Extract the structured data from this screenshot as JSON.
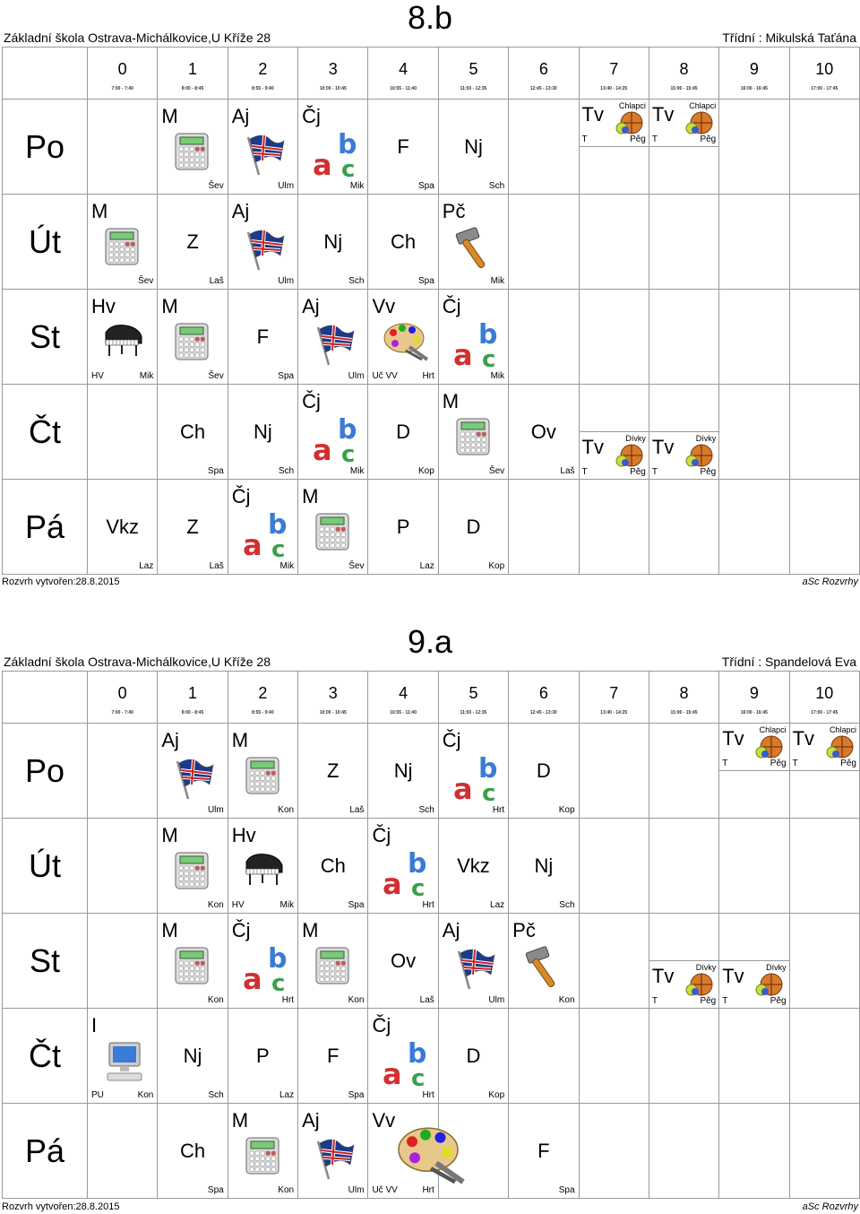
{
  "periods": [
    {
      "n": "0",
      "t": "7:00 - 7:40"
    },
    {
      "n": "1",
      "t": "8:00 - 8:45"
    },
    {
      "n": "2",
      "t": "8:55 - 9:40"
    },
    {
      "n": "3",
      "t": "10:00 - 10:45"
    },
    {
      "n": "4",
      "t": "10:55 - 11:40"
    },
    {
      "n": "5",
      "t": "11:50 - 12:35"
    },
    {
      "n": "6",
      "t": "12:45 - 13:30"
    },
    {
      "n": "7",
      "t": "13:40 - 14:25"
    },
    {
      "n": "8",
      "t": "15:00 - 15:45"
    },
    {
      "n": "9",
      "t": "16:00 - 16:45"
    },
    {
      "n": "10",
      "t": "17:00 - 17:45"
    }
  ],
  "school": "Základní škola Ostrava-Michálkovice,U Kříže 28",
  "created": "Rozvrh vytvořen:28.8.2015",
  "brand": "aSc Rozvrhy",
  "days": [
    "Po",
    "Út",
    "St",
    "Čt",
    "Pá"
  ],
  "timetables": [
    {
      "class": "8.b",
      "teacher": "Třídní : Mikulská Taťána",
      "rows": [
        [
          {},
          {
            "s": "M",
            "i": "calc",
            "t": "Šev"
          },
          {
            "s": "Aj",
            "i": "flag",
            "t": "Ulm"
          },
          {
            "s": "Čj",
            "i": "abc",
            "t": "Mik"
          },
          {
            "s": "F",
            "t": "Spa"
          },
          {
            "s": "Nj",
            "t": "Sch"
          },
          {},
          {
            "s": "Tv",
            "i": "ball",
            "g": "Chlapci",
            "gt": "T",
            "gp": "Pěg",
            "half": "top"
          },
          {
            "s": "Tv",
            "i": "ball",
            "g": "Chlapci",
            "gt": "T",
            "gp": "Pěg",
            "half": "top"
          },
          {},
          {}
        ],
        [
          {
            "s": "M",
            "i": "calc",
            "t": "Šev"
          },
          {
            "s": "Z",
            "t": "Laš"
          },
          {
            "s": "Aj",
            "i": "flag",
            "t": "Ulm"
          },
          {
            "s": "Nj",
            "t": "Sch"
          },
          {
            "s": "Ch",
            "t": "Spa"
          },
          {
            "s": "Pč",
            "i": "hammer",
            "t": "Mik"
          },
          {},
          {},
          {},
          {},
          {}
        ],
        [
          {
            "s": "Hv",
            "i": "piano",
            "t": "Mik",
            "tl": "HV"
          },
          {
            "s": "M",
            "i": "calc",
            "t": "Šev"
          },
          {
            "s": "F",
            "t": "Spa"
          },
          {
            "s": "Aj",
            "i": "flag",
            "t": "Ulm"
          },
          {
            "s": "Vv",
            "i": "palette",
            "t": "Hrt",
            "tl": "Uč VV"
          },
          {
            "s": "Čj",
            "i": "abc",
            "t": "Mik"
          },
          {},
          {},
          {},
          {},
          {}
        ],
        [
          {},
          {
            "s": "Ch",
            "t": "Spa"
          },
          {
            "s": "Nj",
            "t": "Sch"
          },
          {
            "s": "Čj",
            "i": "abc",
            "t": "Mik"
          },
          {
            "s": "D",
            "t": "Kop"
          },
          {
            "s": "M",
            "i": "calc",
            "t": "Šev"
          },
          {
            "s": "Ov",
            "t": "Laš"
          },
          {
            "s": "Tv",
            "i": "ball",
            "g": "Dívky",
            "gt": "T",
            "gp": "Pěg",
            "half": "bottom"
          },
          {
            "s": "Tv",
            "i": "ball",
            "g": "Dívky",
            "gt": "T",
            "gp": "Pěg",
            "half": "bottom"
          },
          {},
          {}
        ],
        [
          {
            "s": "Vkz",
            "t": "Laz"
          },
          {
            "s": "Z",
            "t": "Laš"
          },
          {
            "s": "Čj",
            "i": "abc",
            "t": "Mik"
          },
          {
            "s": "M",
            "i": "calc",
            "t": "Šev"
          },
          {
            "s": "P",
            "t": "Laz"
          },
          {
            "s": "D",
            "t": "Kop"
          },
          {},
          {},
          {},
          {},
          {}
        ]
      ]
    },
    {
      "class": "9.a",
      "teacher": "Třídní : Spandelová Eva",
      "rows": [
        [
          {},
          {
            "s": "Aj",
            "i": "flag",
            "t": "Ulm"
          },
          {
            "s": "M",
            "i": "calc",
            "t": "Kon"
          },
          {
            "s": "Z",
            "t": "Laš"
          },
          {
            "s": "Nj",
            "t": "Sch"
          },
          {
            "s": "Čj",
            "i": "abc",
            "t": "Hrt"
          },
          {
            "s": "D",
            "t": "Kop"
          },
          {},
          {},
          {
            "s": "Tv",
            "i": "ball",
            "g": "Chlapci",
            "gt": "T",
            "gp": "Pěg",
            "half": "top"
          },
          {
            "s": "Tv",
            "i": "ball",
            "g": "Chlapci",
            "gt": "T",
            "gp": "Pěg",
            "half": "top"
          }
        ],
        [
          {},
          {
            "s": "M",
            "i": "calc",
            "t": "Kon"
          },
          {
            "s": "Hv",
            "i": "piano",
            "t": "Mik",
            "tl": "HV"
          },
          {
            "s": "Ch",
            "t": "Spa"
          },
          {
            "s": "Čj",
            "i": "abc",
            "t": "Hrt"
          },
          {
            "s": "Vkz",
            "t": "Laz"
          },
          {
            "s": "Nj",
            "t": "Sch"
          },
          {},
          {},
          {},
          {}
        ],
        [
          {},
          {
            "s": "M",
            "i": "calc",
            "t": "Kon"
          },
          {
            "s": "Čj",
            "i": "abc",
            "t": "Hrt"
          },
          {
            "s": "M",
            "i": "calc",
            "t": "Kon"
          },
          {
            "s": "Ov",
            "t": "Laš"
          },
          {
            "s": "Aj",
            "i": "flag",
            "t": "Ulm"
          },
          {
            "s": "Pč",
            "i": "hammer",
            "t": "Kon"
          },
          {},
          {
            "s": "Tv",
            "i": "ball",
            "g": "Dívky",
            "gt": "T",
            "gp": "Pěg",
            "half": "bottom"
          },
          {
            "s": "Tv",
            "i": "ball",
            "g": "Dívky",
            "gt": "T",
            "gp": "Pěg",
            "half": "bottom"
          },
          {}
        ],
        [
          {
            "s": "I",
            "i": "pc",
            "t": "Kon",
            "tl": "PU"
          },
          {
            "s": "Nj",
            "t": "Sch"
          },
          {
            "s": "P",
            "t": "Laz"
          },
          {
            "s": "F",
            "t": "Spa"
          },
          {
            "s": "Čj",
            "i": "abc",
            "t": "Hrt"
          },
          {
            "s": "D",
            "t": "Kop"
          },
          {},
          {},
          {},
          {},
          {}
        ],
        [
          {},
          {
            "s": "Ch",
            "t": "Spa"
          },
          {
            "s": "M",
            "i": "calc",
            "t": "Kon"
          },
          {
            "s": "Aj",
            "i": "flag",
            "t": "Ulm"
          },
          {
            "s": "Vv",
            "i": "palette",
            "t": "Hrt",
            "tl": "Uč VV",
            "wide": true
          },
          {},
          {
            "s": "F",
            "t": "Spa"
          },
          {},
          {},
          {},
          {}
        ]
      ]
    }
  ]
}
